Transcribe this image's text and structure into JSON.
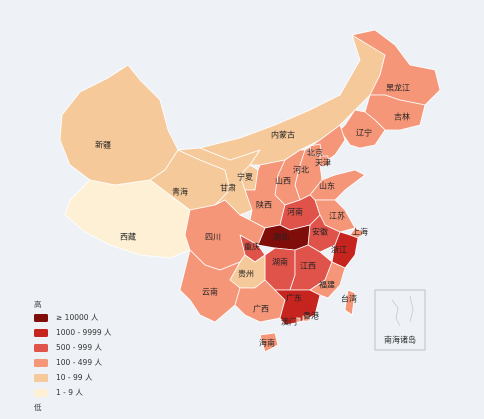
{
  "map": {
    "regions": [
      {
        "name": "新疆",
        "color": "#f5c99a"
      },
      {
        "name": "西藏",
        "color": "#fdf0d5"
      },
      {
        "name": "青海",
        "color": "#f5c99a"
      },
      {
        "name": "甘肃",
        "color": "#f5c99a"
      },
      {
        "name": "内蒙古",
        "color": "#f5c99a"
      },
      {
        "name": "黑龙江",
        "color": "#f59678"
      },
      {
        "name": "吉林",
        "color": "#f59678"
      },
      {
        "name": "辽宁",
        "color": "#f59678"
      },
      {
        "name": "河北",
        "color": "#f59678"
      },
      {
        "name": "北京",
        "color": "#f59678"
      },
      {
        "name": "天津",
        "color": "#f59678"
      },
      {
        "name": "山西",
        "color": "#f59678"
      },
      {
        "name": "宁夏",
        "color": "#f5c99a"
      },
      {
        "name": "陕西",
        "color": "#f59678"
      },
      {
        "name": "山东",
        "color": "#f59678"
      },
      {
        "name": "河南",
        "color": "#e0534a"
      },
      {
        "name": "江苏",
        "color": "#f59678"
      },
      {
        "name": "安徽",
        "color": "#e0534a"
      },
      {
        "name": "上海",
        "color": "#f59678"
      },
      {
        "name": "湖北",
        "color": "#7f0d0a"
      },
      {
        "name": "重庆",
        "color": "#e0534a"
      },
      {
        "name": "四川",
        "color": "#f59678"
      },
      {
        "name": "浙江",
        "color": "#c5241f"
      },
      {
        "name": "湖南",
        "color": "#e0534a"
      },
      {
        "name": "江西",
        "color": "#e0534a"
      },
      {
        "name": "贵州",
        "color": "#f5c99a"
      },
      {
        "name": "云南",
        "color": "#f59678"
      },
      {
        "name": "广西",
        "color": "#f59678"
      },
      {
        "name": "广东",
        "color": "#c5241f"
      },
      {
        "name": "福建",
        "color": "#f59678"
      },
      {
        "name": "台湾",
        "color": "#f59678"
      },
      {
        "name": "海南",
        "color": "#f59678"
      },
      {
        "name": "香港",
        "color": "#f59678"
      },
      {
        "name": "澳门",
        "color": "#f59678"
      }
    ],
    "inset_label": "南海诸岛",
    "legend": {
      "high": "高",
      "low": "低",
      "items": [
        {
          "label": "≥ 10000 人",
          "color": "#7f0d0a"
        },
        {
          "label": "1000 - 9999 人",
          "color": "#c5241f"
        },
        {
          "label": "500 - 999 人",
          "color": "#e0534a"
        },
        {
          "label": "100 - 499 人",
          "color": "#f59678"
        },
        {
          "label": "10 - 99 人",
          "color": "#f5c99a"
        },
        {
          "label": "1 - 9 人",
          "color": "#fdf0d5"
        }
      ]
    }
  }
}
